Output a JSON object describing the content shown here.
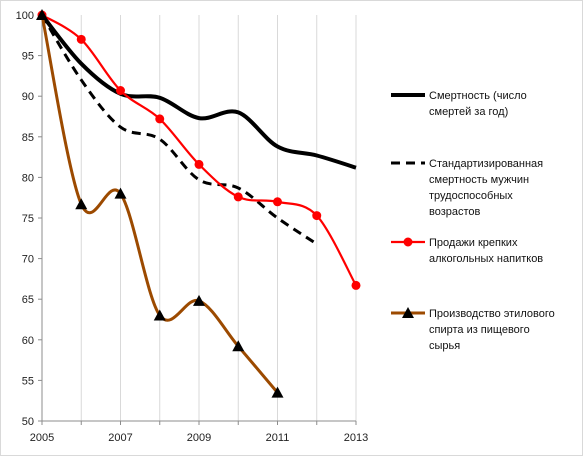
{
  "chart_data": {
    "type": "line",
    "title": "",
    "xlabel": "",
    "ylabel": "",
    "xlim": [
      2005,
      2013
    ],
    "ylim": [
      50,
      100
    ],
    "x_ticks": [
      2005,
      2007,
      2009,
      2011,
      2013
    ],
    "y_ticks": [
      50,
      55,
      60,
      65,
      70,
      75,
      80,
      85,
      90,
      95,
      100
    ],
    "grid": "vertical",
    "legend_position": "right",
    "series": [
      {
        "name": "Смертность (число смертей за год)",
        "legend_lines": [
          "Смертность (число",
          "смертей за год)"
        ],
        "color": "#000000",
        "style": "solid",
        "marker": "none",
        "points": [
          [
            2005,
            100
          ],
          [
            2006,
            94
          ],
          [
            2007,
            90.3
          ],
          [
            2008,
            89.8
          ],
          [
            2009,
            87.3
          ],
          [
            2010,
            88
          ],
          [
            2011,
            83.8
          ],
          [
            2012,
            82.7
          ],
          [
            2013,
            81.2
          ]
        ]
      },
      {
        "name": "Стандартизированная смертность мужчин трудоспособных возрастов",
        "legend_lines": [
          "Стандартизированная",
          "смертность мужчин",
          "трудоспособных",
          "возрастов"
        ],
        "color": "#000000",
        "style": "dashed",
        "marker": "none",
        "points": [
          [
            2005,
            100
          ],
          [
            2006,
            92
          ],
          [
            2007,
            86.2
          ],
          [
            2008,
            84.7
          ],
          [
            2009,
            79.7
          ],
          [
            2010,
            78.7
          ],
          [
            2011,
            75
          ],
          [
            2012,
            71.8
          ]
        ]
      },
      {
        "name": "Продажи крепких алкогольных напитков",
        "legend_lines": [
          "Продажи крепких",
          "алкогольных напитков"
        ],
        "color": "#ff0000",
        "style": "solid",
        "marker": "circle",
        "points": [
          [
            2005,
            100
          ],
          [
            2006,
            97
          ],
          [
            2007,
            90.7
          ],
          [
            2008,
            87.2
          ],
          [
            2009,
            81.6
          ],
          [
            2010,
            77.6
          ],
          [
            2011,
            77
          ],
          [
            2012,
            75.3
          ],
          [
            2013,
            66.7
          ]
        ]
      },
      {
        "name": "Производство этилового спирта из пищевого сырья",
        "legend_lines": [
          "Производство этилового",
          "спирта из пищевого",
          "сырья"
        ],
        "color": "#9c4a00",
        "style": "solid",
        "marker": "triangle",
        "points": [
          [
            2005,
            100
          ],
          [
            2006,
            76.7
          ],
          [
            2007,
            78
          ],
          [
            2008,
            63
          ],
          [
            2009,
            64.8
          ],
          [
            2010,
            59.2
          ],
          [
            2011,
            53.5
          ]
        ]
      }
    ]
  }
}
